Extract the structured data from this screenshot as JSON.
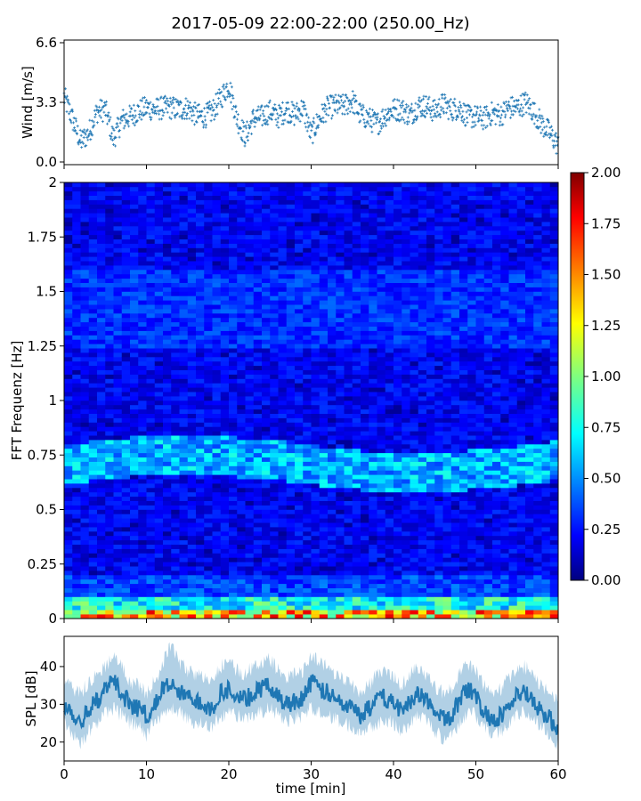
{
  "chart_data": [
    {
      "type": "scatter",
      "title": "2017-05-09 22:00-22:00 (250.00_Hz)",
      "ylabel": "Wind [m/s]",
      "xlim": [
        0,
        60
      ],
      "ylim": [
        0,
        6.6
      ],
      "yticks": [
        {
          "value": 0.0,
          "label": "0.0"
        },
        {
          "value": 3.3,
          "label": "3.3"
        },
        {
          "value": 6.6,
          "label": "6.6"
        }
      ],
      "color": "#1f77b4",
      "marker": "plus",
      "series": [
        {
          "x": [
            0,
            1,
            2,
            3,
            4,
            5,
            6,
            7,
            8,
            9,
            10,
            11,
            12,
            13,
            14,
            15,
            16,
            17,
            18,
            19,
            20,
            21,
            22,
            23,
            24,
            25,
            26,
            27,
            28,
            29,
            30,
            31,
            32,
            33,
            34,
            35,
            36,
            37,
            38,
            39,
            40,
            41,
            42,
            43,
            44,
            45,
            46,
            47,
            48,
            49,
            50,
            51,
            52,
            53,
            54,
            55,
            56,
            57,
            58,
            59,
            60
          ],
          "y": [
            3.6,
            2.4,
            1.1,
            1.6,
            2.8,
            2.9,
            1.3,
            2.3,
            2.5,
            2.8,
            3.0,
            2.9,
            3.0,
            3.0,
            2.9,
            3.0,
            2.6,
            2.5,
            2.8,
            3.5,
            4.3,
            2.4,
            1.4,
            2.4,
            2.5,
            2.8,
            2.5,
            2.9,
            2.6,
            3.0,
            1.5,
            2.4,
            3.0,
            3.1,
            3.1,
            3.4,
            2.6,
            2.4,
            2.1,
            2.6,
            2.9,
            2.9,
            2.6,
            3.1,
            3.1,
            2.8,
            3.2,
            2.9,
            3.0,
            2.5,
            2.5,
            2.4,
            2.7,
            2.6,
            3.0,
            3.0,
            3.3,
            2.8,
            2.1,
            1.6,
            0.9
          ]
        }
      ]
    },
    {
      "type": "heatmap",
      "ylabel": "FFT Frequenz [Hz]",
      "xlim": [
        0,
        60
      ],
      "ylim": [
        0,
        2
      ],
      "yticks": [
        {
          "value": 0,
          "label": "0"
        },
        {
          "value": 0.25,
          "label": "0.25"
        },
        {
          "value": 0.5,
          "label": "0.5"
        },
        {
          "value": 0.75,
          "label": "0.75"
        },
        {
          "value": 1,
          "label": "1"
        },
        {
          "value": 1.25,
          "label": "1.25"
        },
        {
          "value": 1.5,
          "label": "1.5"
        },
        {
          "value": 1.75,
          "label": "1.75"
        },
        {
          "value": 2,
          "label": "2"
        }
      ],
      "colormap": "jet",
      "colorbar": {
        "range": [
          0,
          2
        ],
        "ticks": [
          "0.00",
          "0.25",
          "0.50",
          "0.75",
          "1.00",
          "1.25",
          "1.50",
          "1.75",
          "2.00"
        ]
      },
      "bands": [
        {
          "freq_from": 0.0,
          "freq_to": 0.03,
          "value": 1.6
        },
        {
          "freq_from": 0.03,
          "freq_to": 0.09,
          "value": 0.9
        },
        {
          "freq_from": 0.09,
          "freq_to": 0.2,
          "value": 0.45
        },
        {
          "freq_from": 0.62,
          "freq_to": 0.8,
          "value": 0.7
        },
        {
          "freq_from": 1.25,
          "freq_to": 1.6,
          "value": 0.4
        }
      ]
    },
    {
      "type": "area",
      "ylabel": "SPL [dB]",
      "xlabel": "time [min]",
      "xlim": [
        0,
        60
      ],
      "ylim": [
        15,
        48
      ],
      "xticks": [
        {
          "value": 0,
          "label": "0"
        },
        {
          "value": 10,
          "label": "10"
        },
        {
          "value": 20,
          "label": "20"
        },
        {
          "value": 30,
          "label": "30"
        },
        {
          "value": 40,
          "label": "40"
        },
        {
          "value": 50,
          "label": "50"
        },
        {
          "value": 60,
          "label": "60"
        }
      ],
      "yticks": [
        {
          "value": 20,
          "label": "20"
        },
        {
          "value": 30,
          "label": "30"
        },
        {
          "value": 40,
          "label": "40"
        }
      ],
      "color": "#1f77b4",
      "series": [
        {
          "x": [
            0,
            1,
            2,
            3,
            4,
            5,
            6,
            7,
            8,
            9,
            10,
            11,
            12,
            13,
            14,
            15,
            16,
            17,
            18,
            19,
            20,
            21,
            22,
            23,
            24,
            25,
            26,
            27,
            28,
            29,
            30,
            31,
            32,
            33,
            34,
            35,
            36,
            37,
            38,
            39,
            40,
            41,
            42,
            43,
            44,
            45,
            46,
            47,
            48,
            49,
            50,
            51,
            52,
            53,
            54,
            55,
            56,
            57,
            58,
            59,
            60
          ],
          "y": [
            30,
            28,
            25,
            29,
            31,
            34,
            36,
            33,
            30,
            29,
            27,
            30,
            34,
            35,
            33,
            32,
            31,
            30,
            29,
            33,
            34,
            32,
            31,
            33,
            34,
            35,
            32,
            30,
            31,
            32,
            36,
            34,
            33,
            31,
            30,
            29,
            27,
            29,
            31,
            32,
            30,
            28,
            31,
            33,
            31,
            28,
            26,
            27,
            31,
            34,
            32,
            28,
            26,
            27,
            30,
            32,
            33,
            30,
            28,
            26,
            24
          ],
          "low": [
            25,
            22,
            19,
            23,
            25,
            28,
            29,
            27,
            25,
            24,
            22,
            25,
            27,
            29,
            28,
            26,
            25,
            25,
            24,
            27,
            28,
            27,
            26,
            27,
            28,
            29,
            27,
            25,
            26,
            27,
            29,
            28,
            27,
            26,
            25,
            24,
            23,
            24,
            25,
            26,
            25,
            23,
            25,
            27,
            26,
            23,
            21,
            22,
            25,
            28,
            27,
            24,
            22,
            23,
            25,
            27,
            28,
            26,
            24,
            22,
            19
          ],
          "high": [
            36,
            34,
            33,
            36,
            38,
            40,
            43,
            40,
            36,
            35,
            33,
            36,
            41,
            46,
            41,
            39,
            38,
            37,
            36,
            40,
            41,
            39,
            38,
            40,
            41,
            42,
            39,
            37,
            38,
            39,
            43,
            41,
            40,
            38,
            37,
            35,
            33,
            35,
            38,
            39,
            37,
            35,
            38,
            40,
            38,
            35,
            33,
            34,
            38,
            41,
            39,
            35,
            33,
            34,
            37,
            39,
            40,
            37,
            35,
            33,
            30
          ]
        }
      ]
    }
  ]
}
